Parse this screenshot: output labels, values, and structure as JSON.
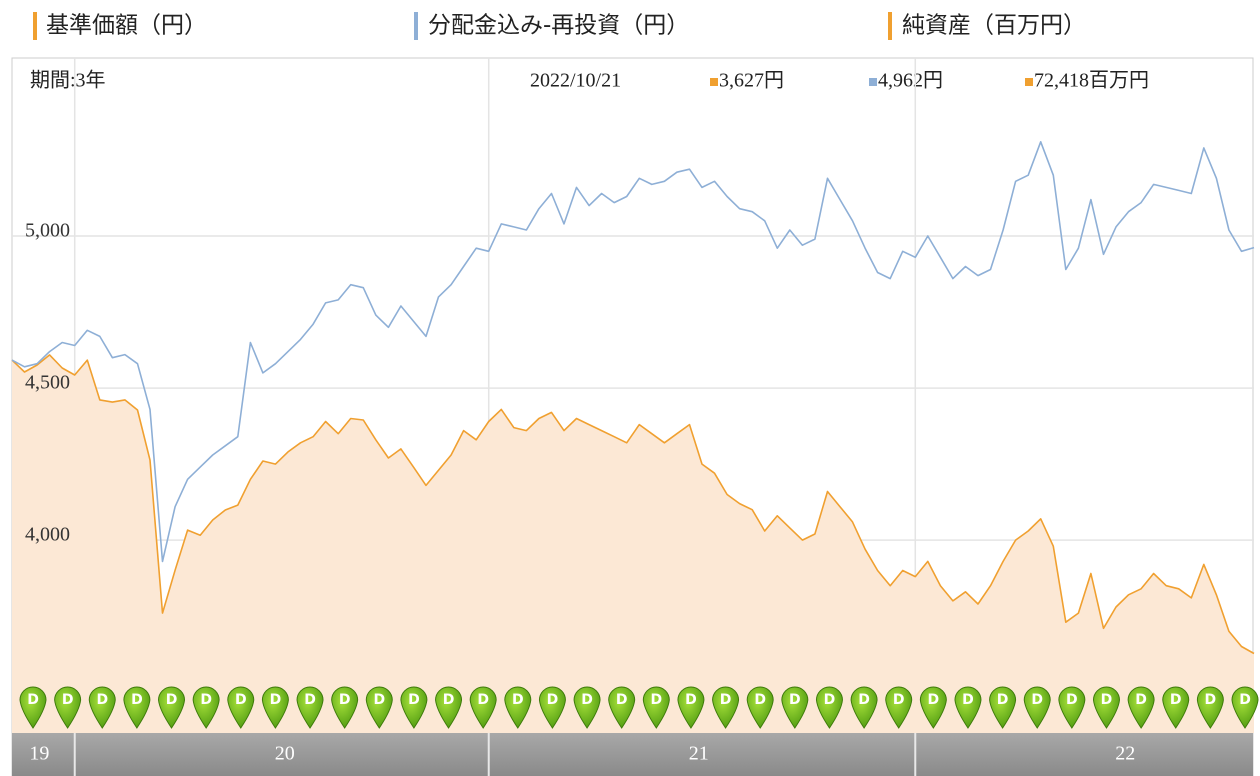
{
  "chart_data": {
    "type": "line",
    "period_label": "期間:3年",
    "date": "2022/10/21",
    "categories": [
      "19",
      null,
      null,
      null,
      null,
      "20",
      null,
      null,
      null,
      null,
      null,
      null,
      null,
      null,
      null,
      null,
      null,
      null,
      null,
      null,
      null,
      null,
      null,
      null,
      null,
      null,
      null,
      null,
      null,
      null,
      null,
      null,
      null,
      null,
      null,
      null,
      null,
      null,
      "21",
      null,
      null,
      null,
      null,
      null,
      null,
      null,
      null,
      null,
      null,
      null,
      null,
      null,
      null,
      null,
      null,
      null,
      null,
      null,
      null,
      null,
      null,
      null,
      null,
      null,
      null,
      null,
      null,
      null,
      null,
      null,
      null,
      null,
      "22",
      null,
      null,
      null,
      null,
      null,
      null,
      null,
      null,
      null,
      null,
      null,
      null,
      null,
      null,
      null,
      null,
      null,
      null,
      null,
      null,
      null,
      null,
      null,
      null,
      null,
      null,
      null
    ],
    "series": [
      {
        "name": "基準価額（円）",
        "color": "#f0a030",
        "area_color": "#fce8d5",
        "latest_label": "3,627円",
        "values": [
          4592,
          4553,
          4576,
          4609,
          4566,
          4543,
          4592,
          4461,
          4454,
          4461,
          4428,
          4263,
          3760,
          3901,
          4033,
          4016,
          4066,
          4099,
          4115,
          4200,
          4260,
          4250,
          4290,
          4320,
          4340,
          4390,
          4350,
          4400,
          4395,
          4330,
          4270,
          4300,
          4240,
          4180,
          4230,
          4280,
          4360,
          4330,
          4390,
          4430,
          4370,
          4360,
          4400,
          4420,
          4360,
          4400,
          4380,
          4360,
          4340,
          4320,
          4380,
          4350,
          4320,
          4350,
          4380,
          4250,
          4220,
          4150,
          4120,
          4100,
          4030,
          4080,
          4040,
          4000,
          4020,
          4160,
          4110,
          4060,
          3970,
          3900,
          3850,
          3900,
          3880,
          3930,
          3850,
          3800,
          3830,
          3790,
          3850,
          3930,
          4000,
          4030,
          4070,
          3980,
          3730,
          3760,
          3890,
          3710,
          3780,
          3820,
          3840,
          3890,
          3850,
          3840,
          3810,
          3920,
          3820,
          3700,
          3650,
          3627
        ]
      },
      {
        "name": "分配金込み-再投資（円）",
        "color": "#8eafd6",
        "latest_label": "4,962円",
        "values": [
          4592,
          4570,
          4580,
          4620,
          4650,
          4640,
          4690,
          4670,
          4600,
          4610,
          4580,
          4430,
          3930,
          4110,
          4200,
          4240,
          4280,
          4310,
          4340,
          4650,
          4550,
          4580,
          4620,
          4660,
          4710,
          4780,
          4790,
          4840,
          4830,
          4740,
          4700,
          4770,
          4720,
          4670,
          4800,
          4840,
          4900,
          4960,
          4950,
          5040,
          5030,
          5020,
          5090,
          5140,
          5040,
          5160,
          5100,
          5140,
          5110,
          5130,
          5190,
          5170,
          5180,
          5210,
          5220,
          5160,
          5180,
          5130,
          5090,
          5080,
          5050,
          4960,
          5020,
          4970,
          4990,
          5190,
          5120,
          5050,
          4960,
          4880,
          4860,
          4950,
          4930,
          5000,
          4930,
          4860,
          4900,
          4870,
          4890,
          5020,
          5180,
          5200,
          5310,
          5200,
          4890,
          4960,
          5120,
          4940,
          5030,
          5080,
          5110,
          5170,
          5160,
          5150,
          5140,
          5290,
          5190,
          5020,
          4950,
          4962
        ]
      }
    ],
    "net_assets": {
      "name": "純資産（百万円）",
      "color": "#f0a030",
      "latest_label": "72,418百万円"
    },
    "dividend_label": "D",
    "ylim": [
      3507,
      5579
    ],
    "yticks": [
      {
        "value": 4000,
        "label": "4,000"
      },
      {
        "value": 4500,
        "label": "4,500"
      },
      {
        "value": 5000,
        "label": "5,000"
      }
    ],
    "grid": true
  }
}
